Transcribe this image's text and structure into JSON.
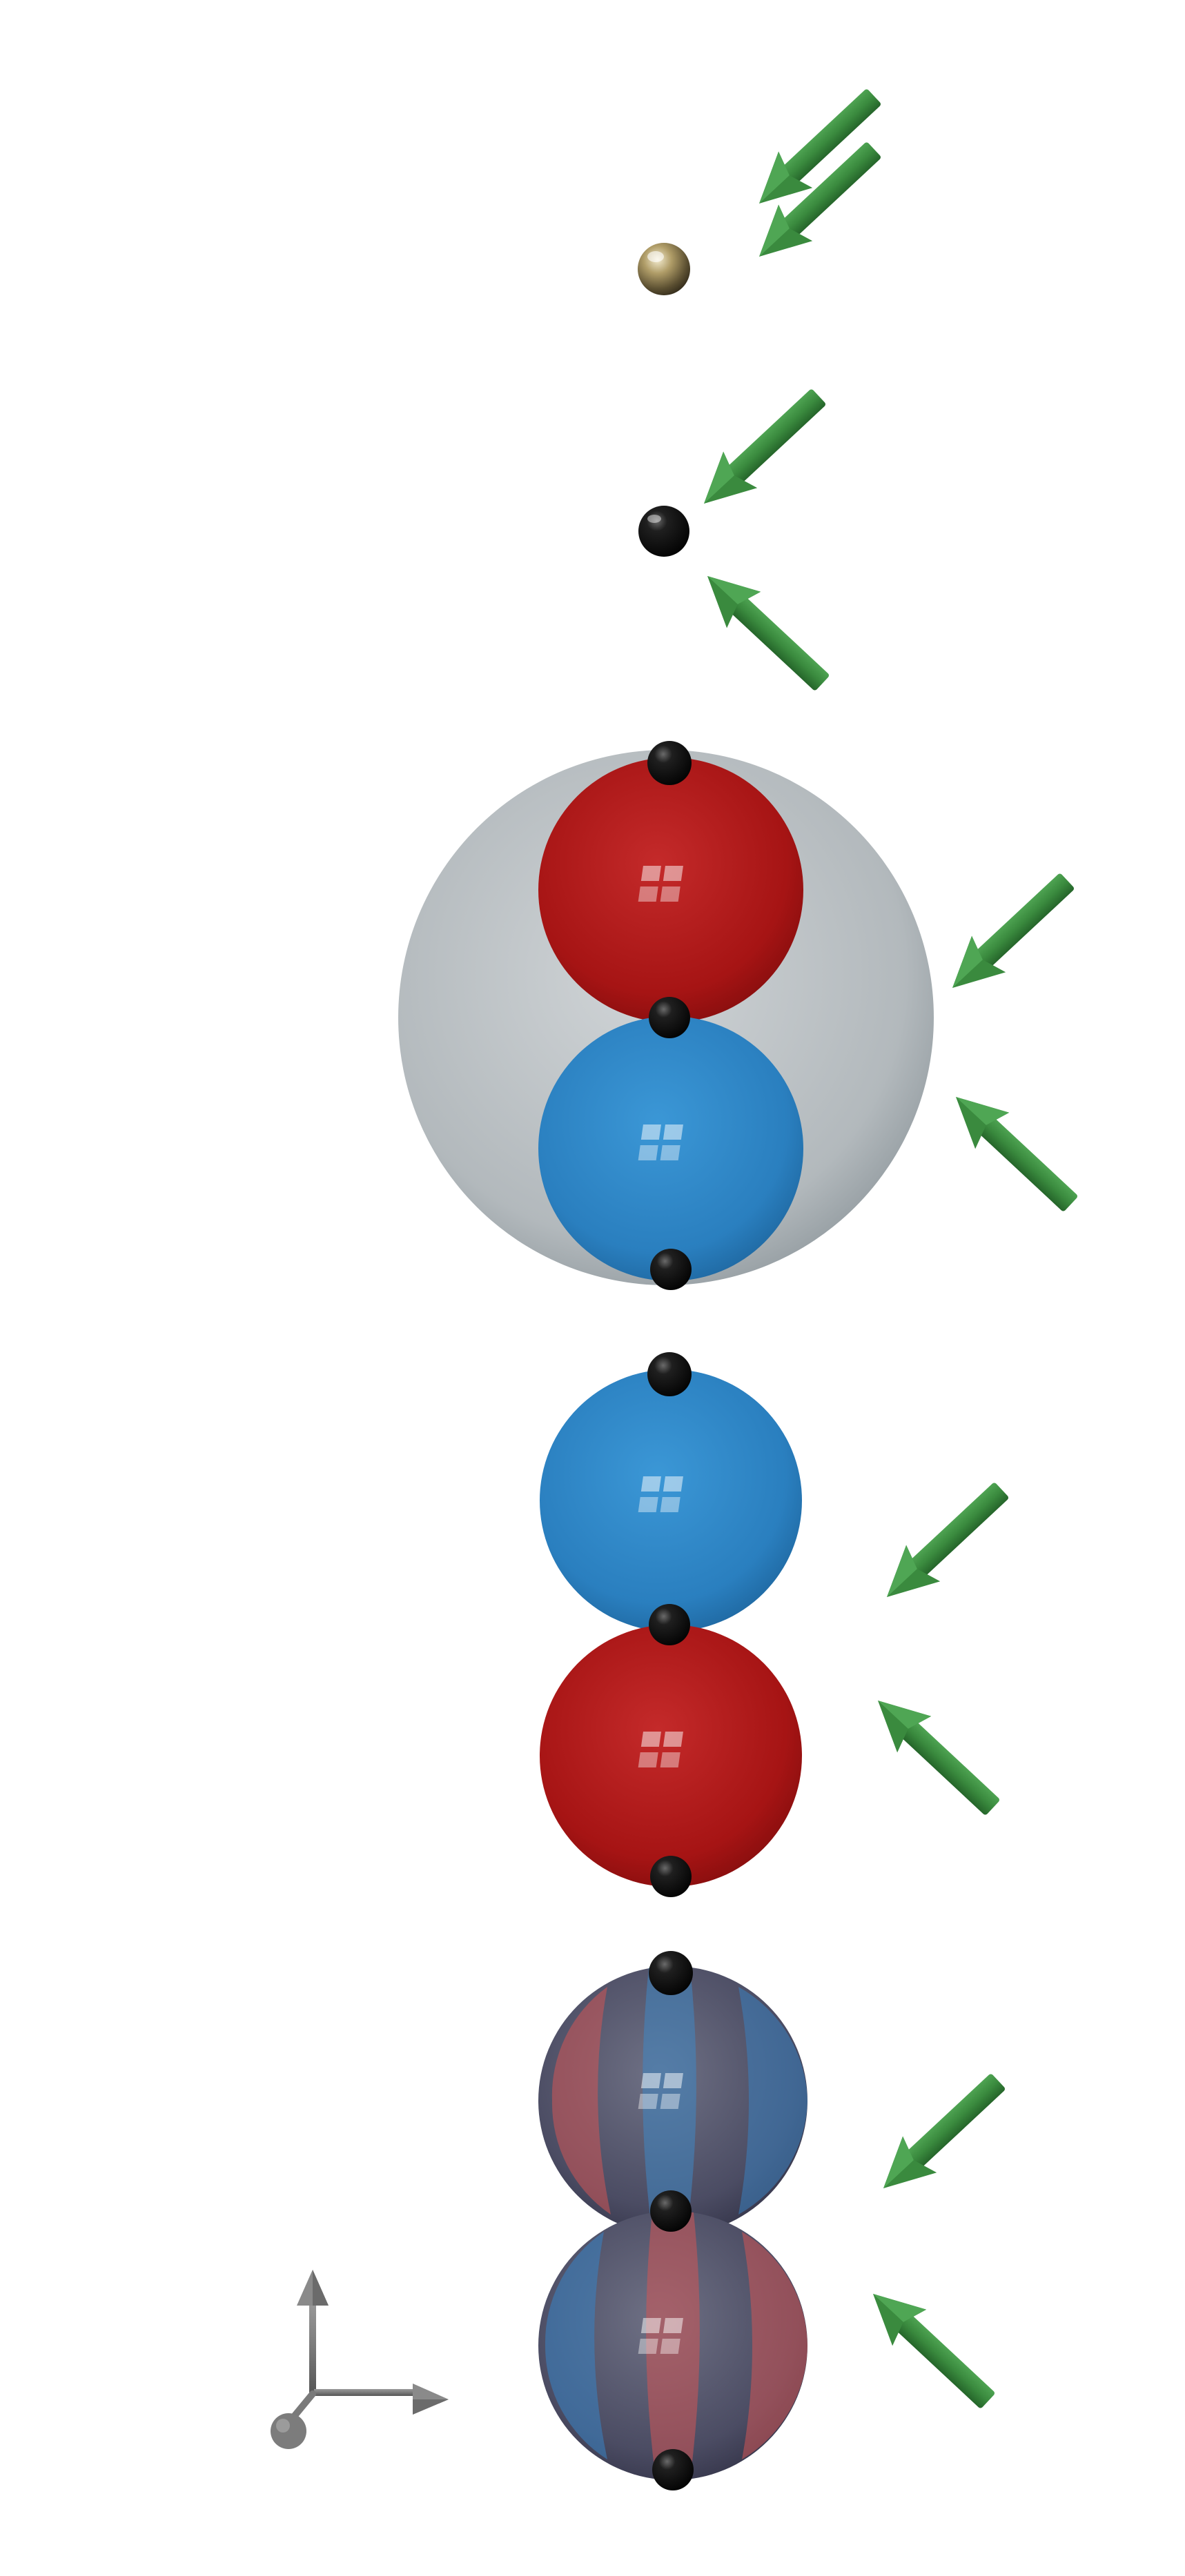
{
  "figure": {
    "background": "#ffffff",
    "colors": {
      "arrow": "#3a8a3e",
      "arrow_dark": "#236326",
      "gold_atom": "#a89560",
      "black_atom": "#0b0b0b",
      "red_lobe": "#b01818",
      "blue_lobe": "#2a86c4",
      "gray_shell": "#b2b8bb",
      "axes": "#7d7d7d"
    },
    "panels": [
      {
        "id": "gold-atom",
        "description_icon": "single-gold-sphere",
        "arrows": [
          "in",
          "in"
        ]
      },
      {
        "id": "black-atom",
        "description_icon": "single-black-sphere",
        "arrows": [
          "in",
          "out"
        ]
      },
      {
        "id": "shell-dimer",
        "description_icon": "red-blue-dimer-in-gray-shell",
        "arrows": [
          "in",
          "out"
        ]
      },
      {
        "id": "blue-red-dimer",
        "description_icon": "blue-over-red-dimer",
        "arrows": [
          "in",
          "out"
        ]
      },
      {
        "id": "striped-dimer",
        "description_icon": "striped-red-blue-dimer",
        "arrows": [
          "in",
          "out"
        ]
      }
    ],
    "axes_icon": "xyz-axes-icon"
  }
}
